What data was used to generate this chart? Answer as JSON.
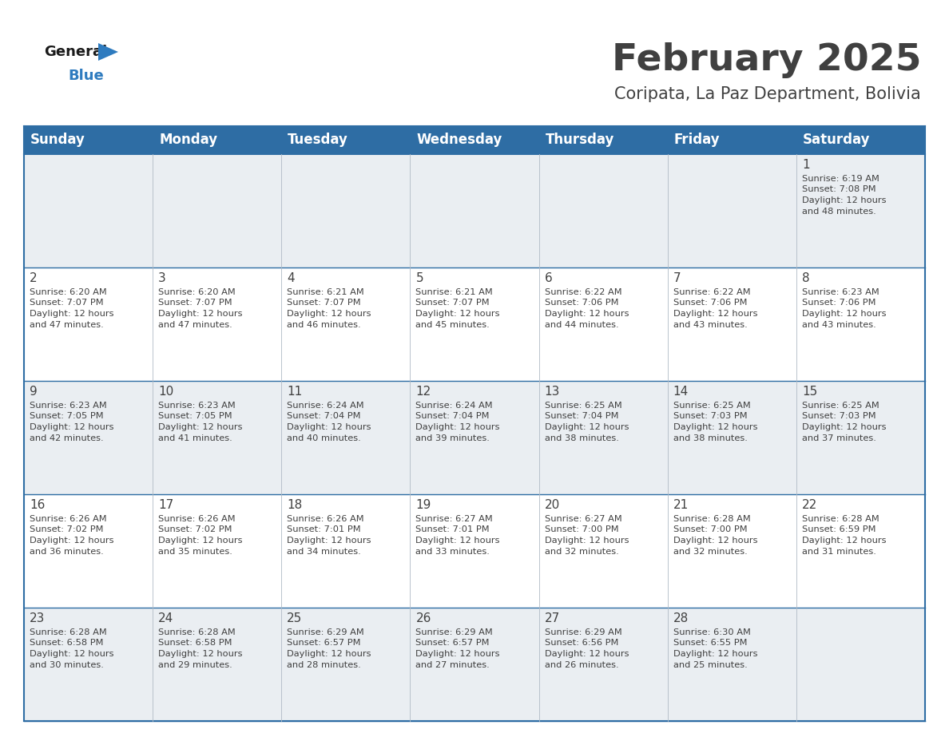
{
  "title": "February 2025",
  "subtitle": "Coripata, La Paz Department, Bolivia",
  "header_color": "#2e6da4",
  "header_text_color": "#ffffff",
  "row0_bg": "#e8edf2",
  "row_bg_light": "#f0f4f7",
  "row_bg_white": "#ffffff",
  "day_headers": [
    "Sunday",
    "Monday",
    "Tuesday",
    "Wednesday",
    "Thursday",
    "Friday",
    "Saturday"
  ],
  "title_fontsize": 34,
  "subtitle_fontsize": 15,
  "day_header_fontsize": 12,
  "day_num_fontsize": 11,
  "cell_text_fontsize": 8.2,
  "days": [
    {
      "day": 1,
      "col": 6,
      "row": 0,
      "sunrise": "6:19 AM",
      "sunset": "7:08 PM",
      "daylight_hours": 12,
      "daylight_minutes": 48
    },
    {
      "day": 2,
      "col": 0,
      "row": 1,
      "sunrise": "6:20 AM",
      "sunset": "7:07 PM",
      "daylight_hours": 12,
      "daylight_minutes": 47
    },
    {
      "day": 3,
      "col": 1,
      "row": 1,
      "sunrise": "6:20 AM",
      "sunset": "7:07 PM",
      "daylight_hours": 12,
      "daylight_minutes": 47
    },
    {
      "day": 4,
      "col": 2,
      "row": 1,
      "sunrise": "6:21 AM",
      "sunset": "7:07 PM",
      "daylight_hours": 12,
      "daylight_minutes": 46
    },
    {
      "day": 5,
      "col": 3,
      "row": 1,
      "sunrise": "6:21 AM",
      "sunset": "7:07 PM",
      "daylight_hours": 12,
      "daylight_minutes": 45
    },
    {
      "day": 6,
      "col": 4,
      "row": 1,
      "sunrise": "6:22 AM",
      "sunset": "7:06 PM",
      "daylight_hours": 12,
      "daylight_minutes": 44
    },
    {
      "day": 7,
      "col": 5,
      "row": 1,
      "sunrise": "6:22 AM",
      "sunset": "7:06 PM",
      "daylight_hours": 12,
      "daylight_minutes": 43
    },
    {
      "day": 8,
      "col": 6,
      "row": 1,
      "sunrise": "6:23 AM",
      "sunset": "7:06 PM",
      "daylight_hours": 12,
      "daylight_minutes": 43
    },
    {
      "day": 9,
      "col": 0,
      "row": 2,
      "sunrise": "6:23 AM",
      "sunset": "7:05 PM",
      "daylight_hours": 12,
      "daylight_minutes": 42
    },
    {
      "day": 10,
      "col": 1,
      "row": 2,
      "sunrise": "6:23 AM",
      "sunset": "7:05 PM",
      "daylight_hours": 12,
      "daylight_minutes": 41
    },
    {
      "day": 11,
      "col": 2,
      "row": 2,
      "sunrise": "6:24 AM",
      "sunset": "7:04 PM",
      "daylight_hours": 12,
      "daylight_minutes": 40
    },
    {
      "day": 12,
      "col": 3,
      "row": 2,
      "sunrise": "6:24 AM",
      "sunset": "7:04 PM",
      "daylight_hours": 12,
      "daylight_minutes": 39
    },
    {
      "day": 13,
      "col": 4,
      "row": 2,
      "sunrise": "6:25 AM",
      "sunset": "7:04 PM",
      "daylight_hours": 12,
      "daylight_minutes": 38
    },
    {
      "day": 14,
      "col": 5,
      "row": 2,
      "sunrise": "6:25 AM",
      "sunset": "7:03 PM",
      "daylight_hours": 12,
      "daylight_minutes": 38
    },
    {
      "day": 15,
      "col": 6,
      "row": 2,
      "sunrise": "6:25 AM",
      "sunset": "7:03 PM",
      "daylight_hours": 12,
      "daylight_minutes": 37
    },
    {
      "day": 16,
      "col": 0,
      "row": 3,
      "sunrise": "6:26 AM",
      "sunset": "7:02 PM",
      "daylight_hours": 12,
      "daylight_minutes": 36
    },
    {
      "day": 17,
      "col": 1,
      "row": 3,
      "sunrise": "6:26 AM",
      "sunset": "7:02 PM",
      "daylight_hours": 12,
      "daylight_minutes": 35
    },
    {
      "day": 18,
      "col": 2,
      "row": 3,
      "sunrise": "6:26 AM",
      "sunset": "7:01 PM",
      "daylight_hours": 12,
      "daylight_minutes": 34
    },
    {
      "day": 19,
      "col": 3,
      "row": 3,
      "sunrise": "6:27 AM",
      "sunset": "7:01 PM",
      "daylight_hours": 12,
      "daylight_minutes": 33
    },
    {
      "day": 20,
      "col": 4,
      "row": 3,
      "sunrise": "6:27 AM",
      "sunset": "7:00 PM",
      "daylight_hours": 12,
      "daylight_minutes": 32
    },
    {
      "day": 21,
      "col": 5,
      "row": 3,
      "sunrise": "6:28 AM",
      "sunset": "7:00 PM",
      "daylight_hours": 12,
      "daylight_minutes": 32
    },
    {
      "day": 22,
      "col": 6,
      "row": 3,
      "sunrise": "6:28 AM",
      "sunset": "6:59 PM",
      "daylight_hours": 12,
      "daylight_minutes": 31
    },
    {
      "day": 23,
      "col": 0,
      "row": 4,
      "sunrise": "6:28 AM",
      "sunset": "6:58 PM",
      "daylight_hours": 12,
      "daylight_minutes": 30
    },
    {
      "day": 24,
      "col": 1,
      "row": 4,
      "sunrise": "6:28 AM",
      "sunset": "6:58 PM",
      "daylight_hours": 12,
      "daylight_minutes": 29
    },
    {
      "day": 25,
      "col": 2,
      "row": 4,
      "sunrise": "6:29 AM",
      "sunset": "6:57 PM",
      "daylight_hours": 12,
      "daylight_minutes": 28
    },
    {
      "day": 26,
      "col": 3,
      "row": 4,
      "sunrise": "6:29 AM",
      "sunset": "6:57 PM",
      "daylight_hours": 12,
      "daylight_minutes": 27
    },
    {
      "day": 27,
      "col": 4,
      "row": 4,
      "sunrise": "6:29 AM",
      "sunset": "6:56 PM",
      "daylight_hours": 12,
      "daylight_minutes": 26
    },
    {
      "day": 28,
      "col": 5,
      "row": 4,
      "sunrise": "6:30 AM",
      "sunset": "6:55 PM",
      "daylight_hours": 12,
      "daylight_minutes": 25
    }
  ],
  "num_rows": 5,
  "logo_general_color": "#1a1a1a",
  "logo_blue_color": "#2e7bbf",
  "line_color": "#2e6da4",
  "text_color": "#404040"
}
